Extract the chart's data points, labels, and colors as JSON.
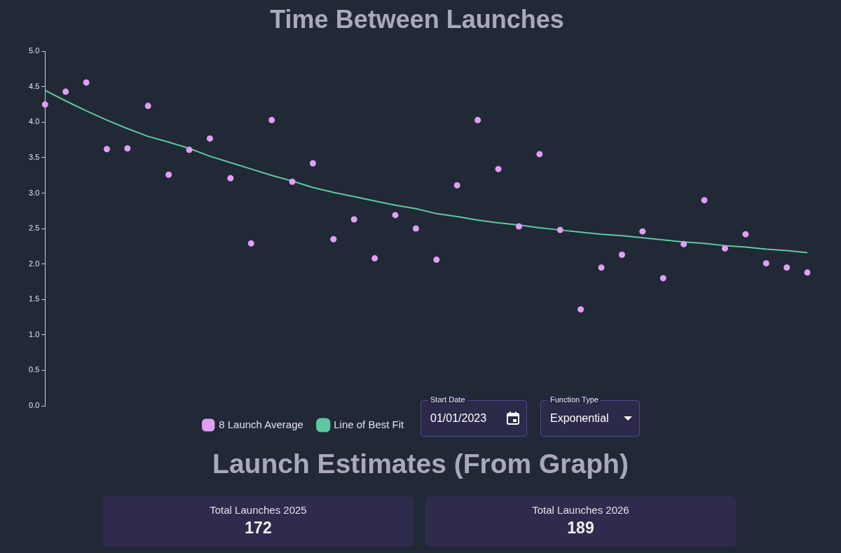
{
  "chart_data": {
    "type": "scatter",
    "title": "Time Between Launches",
    "categories": [
      null,
      null,
      null,
      null,
      null,
      null,
      null,
      null,
      null,
      null,
      null,
      null,
      null,
      null,
      null,
      null,
      null,
      null,
      null,
      null,
      null,
      null,
      null,
      null,
      null,
      null,
      null,
      null,
      null,
      null,
      null,
      null,
      null,
      null,
      null,
      null,
      null,
      null
    ],
    "series": [
      {
        "name": "8 Launch Average",
        "type": "scatter",
        "marker": "circle",
        "color": "#e09ff5",
        "values": [
          4.25,
          4.43,
          4.56,
          3.62,
          3.63,
          4.23,
          3.26,
          3.61,
          3.77,
          3.21,
          2.29,
          4.03,
          3.16,
          3.42,
          2.35,
          2.63,
          2.08,
          2.69,
          2.5,
          2.06,
          3.11,
          4.03,
          3.34,
          2.53,
          3.55,
          2.48,
          1.36,
          1.95,
          2.13,
          2.46,
          1.8,
          2.28,
          2.9,
          2.22,
          2.42,
          2.01,
          1.95,
          1.88
        ]
      },
      {
        "name": "Line of Best Fit",
        "type": "line",
        "marker": "none",
        "color": "#5dc9a0",
        "values": [
          4.45,
          4.3,
          4.16,
          4.03,
          3.91,
          3.8,
          3.72,
          3.63,
          3.52,
          3.43,
          3.34,
          3.25,
          3.17,
          3.08,
          3.01,
          2.95,
          2.89,
          2.83,
          2.78,
          2.71,
          2.67,
          2.62,
          2.58,
          2.55,
          2.51,
          2.48,
          2.45,
          2.42,
          2.4,
          2.37,
          2.34,
          2.31,
          2.29,
          2.26,
          2.24,
          2.21,
          2.19,
          2.16
        ]
      }
    ],
    "ylim": [
      0,
      5
    ],
    "yticks": [
      {
        "value": 0,
        "label": "0.0"
      },
      {
        "value": 0.5,
        "label": "0.5"
      },
      {
        "value": 1,
        "label": "1.0"
      },
      {
        "value": 1.5,
        "label": "1.5"
      },
      {
        "value": 2,
        "label": "2.0"
      },
      {
        "value": 2.5,
        "label": "2.5"
      },
      {
        "value": 3,
        "label": "3.0"
      },
      {
        "value": 3.5,
        "label": "3.5"
      },
      {
        "value": 4,
        "label": "4.0"
      },
      {
        "value": 4.5,
        "label": "4.5"
      },
      {
        "value": 5,
        "label": "5.0"
      }
    ],
    "tick_labels": "y",
    "grid": false,
    "legend": "bottom",
    "annotations": [
      "Start Date",
      "01/01/2023",
      "Function Type",
      "Exponential",
      "Launch Estimates (From Graph)",
      "Total Launches 2025",
      "172",
      "Total Launches 2026",
      "189"
    ]
  }
}
